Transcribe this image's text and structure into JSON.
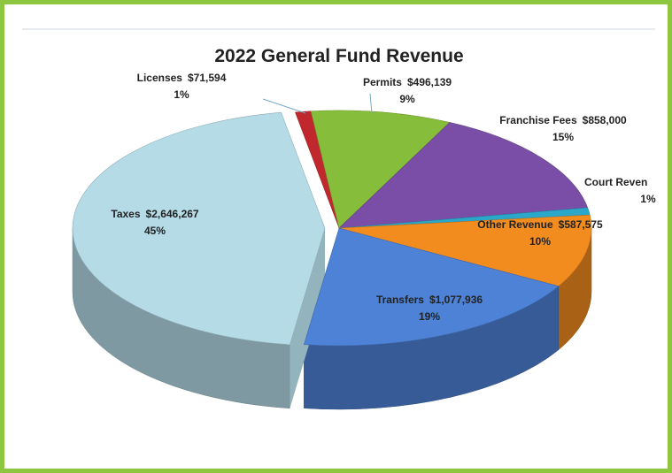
{
  "chart_data": {
    "type": "pie",
    "title": "2022 General Fund Revenue",
    "categories": [
      "Licenses",
      "Permits",
      "Franchise Fees",
      "Court Reven",
      "Other Revenue",
      "Transfers",
      "Taxes"
    ],
    "amounts": [
      "$71,594",
      "$496,139",
      "$858,000",
      null,
      "$587,575",
      "$1,077,936",
      "$2,646,267"
    ],
    "values": [
      1,
      9,
      15,
      1,
      10,
      19,
      45
    ],
    "value_labels": [
      "1%",
      "9%",
      "15%",
      "1%",
      "10%",
      "19%",
      "45%"
    ],
    "colors": [
      "#c0282d",
      "#86bd3b",
      "#7a4ea6",
      "#2aa7c9",
      "#f28c1e",
      "#4d82d6",
      "#b4dbe6"
    ],
    "exploded": [
      false,
      false,
      false,
      false,
      false,
      false,
      true
    ]
  }
}
